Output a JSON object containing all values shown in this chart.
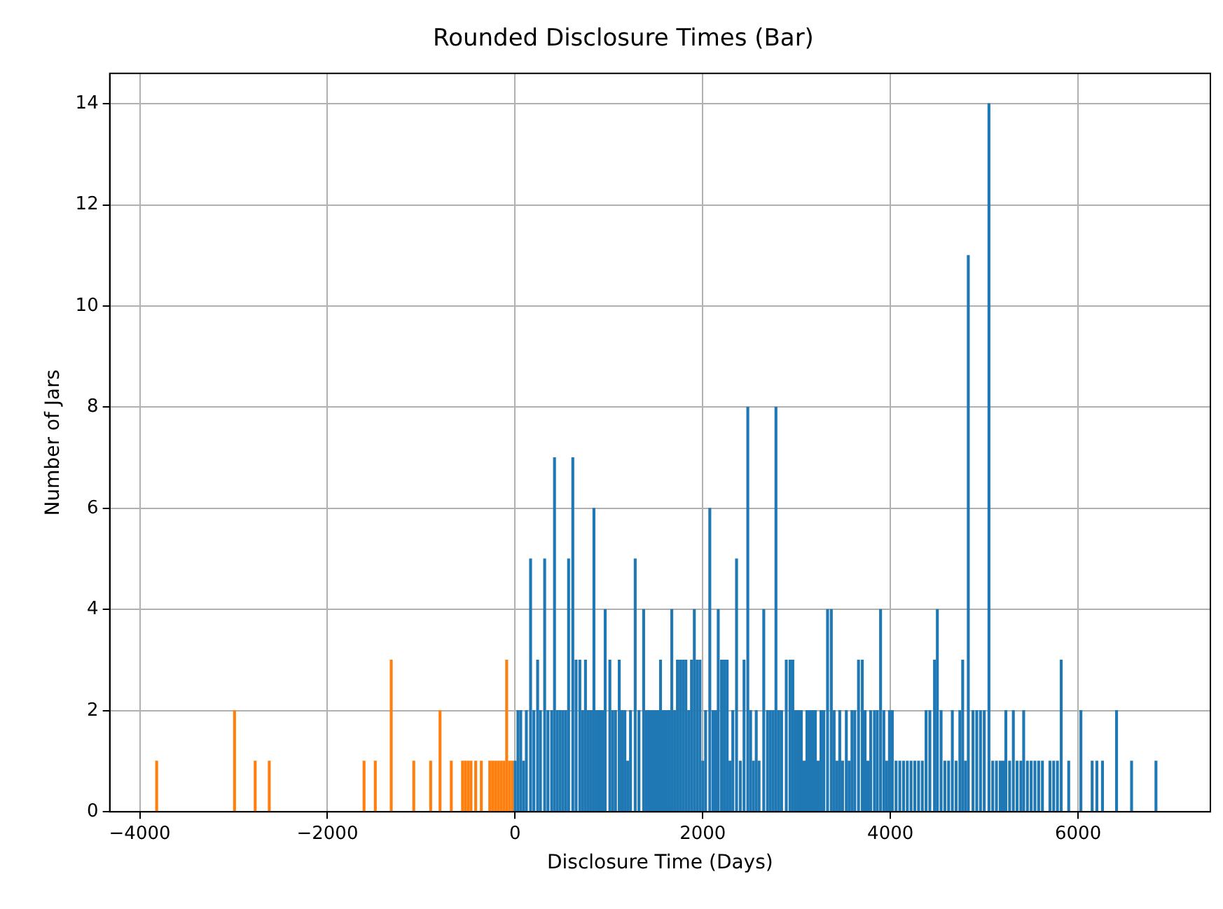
{
  "chart_data": {
    "type": "bar",
    "title": "Rounded Disclosure Times (Bar)",
    "xlabel": "Disclosure Time (Days)",
    "ylabel": "Number of Jars",
    "xlim": [
      -4320,
      7410
    ],
    "ylim": [
      0,
      14.6
    ],
    "xticks": [
      {
        "value": -4000,
        "label": "−4000"
      },
      {
        "value": -2000,
        "label": "−2000"
      },
      0,
      2000,
      4000,
      6000
    ],
    "yticks": [
      0,
      2,
      4,
      6,
      8,
      10,
      12,
      14
    ],
    "grid": true,
    "legend": false,
    "series": [
      {
        "color": "#1f77b4",
        "x": [
          0,
          30,
          60,
          90,
          120,
          165,
          200,
          240,
          270,
          315,
          350,
          390,
          420,
          450,
          480,
          510,
          540,
          570,
          615,
          650,
          690,
          720,
          750,
          780,
          810,
          840,
          870,
          900,
          930,
          960,
          1010,
          1040,
          1070,
          1110,
          1140,
          1170,
          1200,
          1230,
          1280,
          1320,
          1370,
          1400,
          1430,
          1460,
          1490,
          1520,
          1550,
          1580,
          1610,
          1640,
          1670,
          1700,
          1730,
          1760,
          1790,
          1820,
          1850,
          1880,
          1910,
          1940,
          1970,
          2000,
          2030,
          2075,
          2110,
          2140,
          2165,
          2200,
          2230,
          2260,
          2290,
          2320,
          2360,
          2400,
          2440,
          2480,
          2510,
          2540,
          2570,
          2600,
          2650,
          2690,
          2720,
          2750,
          2780,
          2810,
          2840,
          2890,
          2930,
          2960,
          2990,
          3020,
          3050,
          3080,
          3110,
          3140,
          3170,
          3200,
          3230,
          3260,
          3290,
          3330,
          3370,
          3400,
          3430,
          3460,
          3490,
          3530,
          3560,
          3590,
          3620,
          3660,
          3700,
          3730,
          3760,
          3790,
          3830,
          3860,
          3895,
          3930,
          3960,
          3990,
          4020,
          4060,
          4100,
          4140,
          4180,
          4220,
          4260,
          4300,
          4340,
          4380,
          4420,
          4470,
          4500,
          4540,
          4580,
          4620,
          4660,
          4700,
          4740,
          4770,
          4800,
          4830,
          4880,
          4920,
          4960,
          5000,
          5050,
          5090,
          5130,
          5170,
          5200,
          5230,
          5270,
          5310,
          5350,
          5390,
          5420,
          5460,
          5500,
          5540,
          5580,
          5620,
          5700,
          5740,
          5780,
          5820,
          5900,
          6030,
          6150,
          6200,
          6260,
          6410,
          6570,
          6830
        ],
        "values": [
          1,
          2,
          2,
          1,
          2,
          5,
          2,
          3,
          2,
          5,
          2,
          2,
          7,
          2,
          2,
          2,
          2,
          5,
          7,
          3,
          3,
          2,
          3,
          2,
          2,
          6,
          2,
          2,
          2,
          4,
          3,
          2,
          2,
          3,
          2,
          2,
          1,
          2,
          5,
          2,
          4,
          2,
          2,
          2,
          2,
          2,
          3,
          2,
          2,
          2,
          4,
          2,
          3,
          3,
          3,
          3,
          2,
          3,
          4,
          3,
          3,
          1,
          2,
          6,
          2,
          2,
          4,
          3,
          3,
          3,
          1,
          2,
          5,
          1,
          3,
          8,
          2,
          1,
          2,
          1,
          4,
          2,
          2,
          2,
          8,
          2,
          2,
          3,
          3,
          3,
          2,
          2,
          2,
          1,
          2,
          2,
          2,
          2,
          1,
          2,
          2,
          4,
          4,
          2,
          1,
          2,
          1,
          2,
          1,
          2,
          2,
          3,
          3,
          2,
          1,
          2,
          2,
          2,
          4,
          2,
          1,
          2,
          2,
          1,
          1,
          1,
          1,
          1,
          1,
          1,
          1,
          2,
          2,
          3,
          4,
          2,
          1,
          1,
          2,
          1,
          2,
          3,
          1,
          11,
          2,
          2,
          2,
          2,
          14,
          1,
          1,
          1,
          1,
          2,
          1,
          2,
          1,
          1,
          2,
          1,
          1,
          1,
          1,
          1,
          1,
          1,
          1,
          3,
          1,
          2,
          1,
          1,
          1,
          2,
          1,
          1
        ]
      },
      {
        "color": "#ff7f0e",
        "x": [
          -3820,
          -2990,
          -2770,
          -2620,
          -1610,
          -1490,
          -1320,
          -1080,
          -900,
          -800,
          -680,
          -560,
          -530,
          -500,
          -470,
          -420,
          -360,
          -270,
          -240,
          -210,
          -180,
          -150,
          -120,
          -90,
          -60,
          -30
        ],
        "values": [
          1,
          2,
          1,
          1,
          1,
          1,
          3,
          1,
          1,
          2,
          1,
          1,
          1,
          1,
          1,
          1,
          1,
          1,
          1,
          1,
          1,
          1,
          1,
          3,
          1,
          1
        ]
      }
    ]
  }
}
